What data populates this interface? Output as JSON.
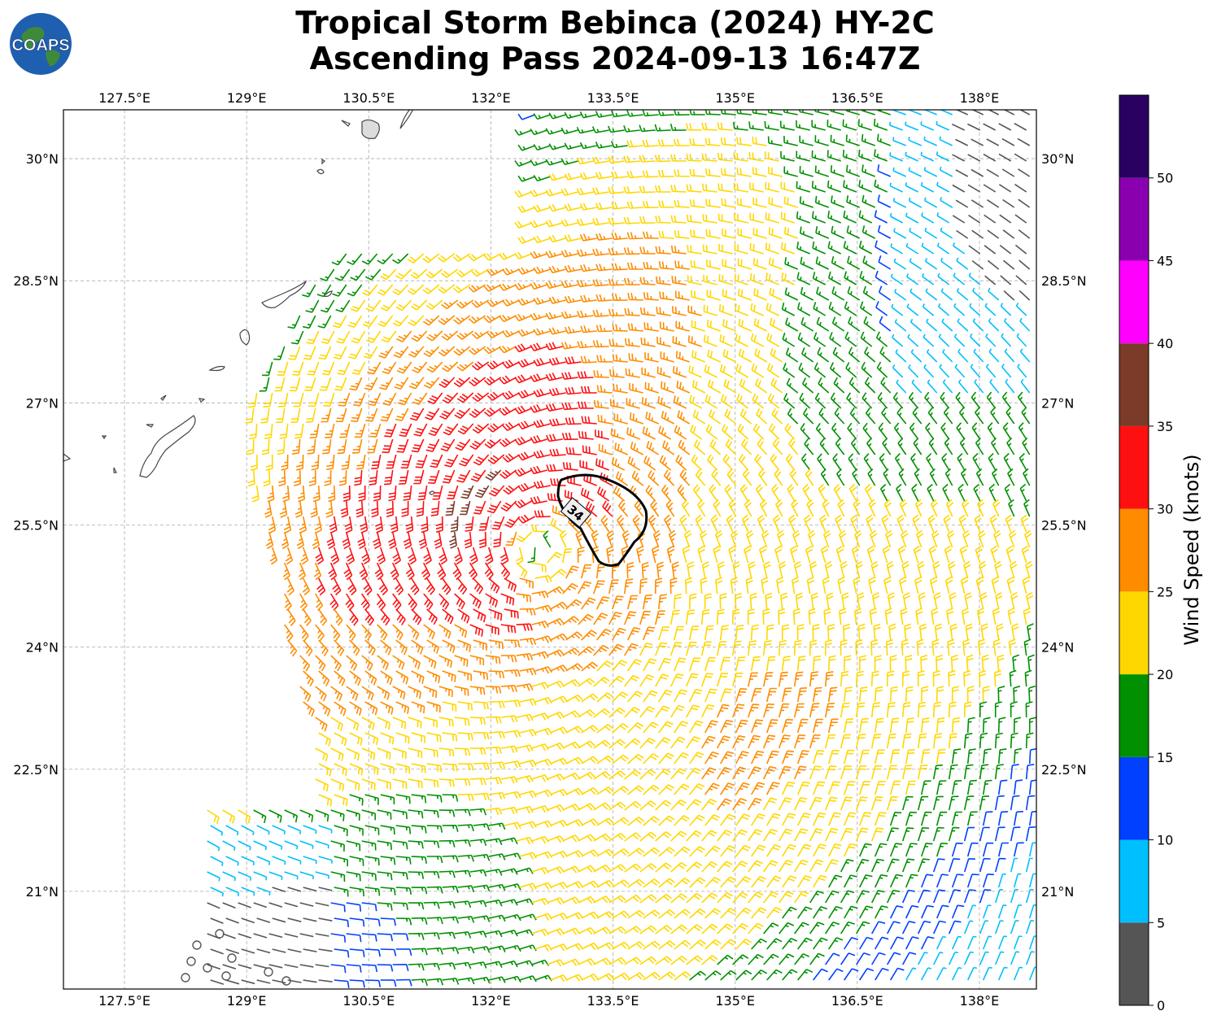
{
  "title_line1": "Tropical Storm Bebinca (2024) HY-2C",
  "title_line2": "Ascending Pass 2024-09-13 16:47Z",
  "logo_text": "COAPS",
  "map": {
    "lon_ticks": [
      "127.5°E",
      "129°E",
      "130.5°E",
      "132°E",
      "133.5°E",
      "135°E",
      "136.5°E",
      "138°E"
    ],
    "lat_ticks": [
      "30°N",
      "28.5°N",
      "27°N",
      "25.5°N",
      "24°N",
      "22.5°N",
      "21°N"
    ],
    "lon_values": [
      127.5,
      129,
      130.5,
      132,
      133.5,
      135,
      136.5,
      138
    ],
    "lat_values": [
      30,
      28.5,
      27,
      25.5,
      24,
      22.5,
      21
    ],
    "extent": {
      "lon_min": 126.75,
      "lon_max": 138.7,
      "lat_min": 19.8,
      "lat_max": 30.6
    },
    "storm_center": {
      "lon": 132.6,
      "lat": 25.2
    },
    "contour_label": "34"
  },
  "colorbar": {
    "label": "Wind Speed (knots)",
    "ticks": [
      "0",
      "5",
      "10",
      "15",
      "20",
      "25",
      "30",
      "35",
      "40",
      "45",
      "50"
    ],
    "bins": [
      {
        "min": 0,
        "max": 5,
        "color": "#555555"
      },
      {
        "min": 5,
        "max": 10,
        "color": "#00bfff"
      },
      {
        "min": 10,
        "max": 15,
        "color": "#0040ff"
      },
      {
        "min": 15,
        "max": 20,
        "color": "#009000"
      },
      {
        "min": 20,
        "max": 25,
        "color": "#ffd700"
      },
      {
        "min": 25,
        "max": 30,
        "color": "#ff8c00"
      },
      {
        "min": 30,
        "max": 35,
        "color": "#ff1010"
      },
      {
        "min": 35,
        "max": 40,
        "color": "#7b3b28"
      },
      {
        "min": 40,
        "max": 45,
        "color": "#ff00ff"
      },
      {
        "min": 45,
        "max": 50,
        "color": "#8a00b0"
      },
      {
        "min": 50,
        "max": 55,
        "color": "#2a0060"
      }
    ]
  }
}
